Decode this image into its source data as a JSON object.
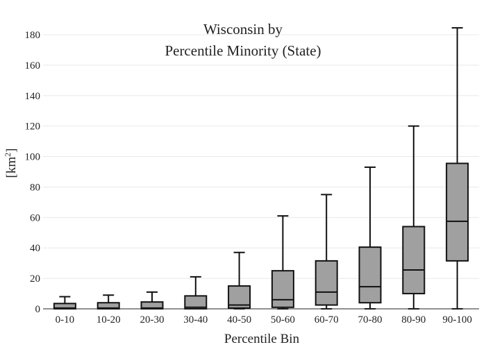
{
  "chart_data": {
    "type": "box",
    "title_line1": "Wisconsin  by",
    "title_line2": "Percentile Minority (State)",
    "xlabel": "Percentile Bin",
    "ylabel_base": "[km",
    "ylabel_sup": "2",
    "ylabel_close": "]",
    "ylim": [
      0,
      186
    ],
    "yticks": [
      0,
      20,
      40,
      60,
      80,
      100,
      120,
      140,
      160,
      180
    ],
    "grid": true,
    "box_color": "#a0a0a0",
    "line_color": "#111111",
    "categories": [
      "0-10",
      "10-20",
      "20-30",
      "30-40",
      "40-50",
      "50-60",
      "60-70",
      "70-80",
      "80-90",
      "90-100"
    ],
    "boxes": [
      {
        "min": 0,
        "q1": 0,
        "median": 0.5,
        "q3": 3.5,
        "max": 8
      },
      {
        "min": 0,
        "q1": 0,
        "median": 0.5,
        "q3": 4,
        "max": 9
      },
      {
        "min": 0,
        "q1": 0,
        "median": 0.5,
        "q3": 4.5,
        "max": 11
      },
      {
        "min": 0,
        "q1": 0,
        "median": 1,
        "q3": 8.5,
        "max": 21
      },
      {
        "min": 0,
        "q1": 0.5,
        "median": 2.5,
        "q3": 15,
        "max": 37
      },
      {
        "min": 0,
        "q1": 1,
        "median": 6,
        "q3": 25,
        "max": 61
      },
      {
        "min": 0,
        "q1": 2.5,
        "median": 11,
        "q3": 31.5,
        "max": 75
      },
      {
        "min": 0,
        "q1": 4,
        "median": 14.5,
        "q3": 40.5,
        "max": 93
      },
      {
        "min": 0,
        "q1": 10,
        "median": 25.5,
        "q3": 54,
        "max": 120
      },
      {
        "min": 0,
        "q1": 31.5,
        "median": 57.5,
        "q3": 95.5,
        "max": 184.5
      }
    ]
  }
}
